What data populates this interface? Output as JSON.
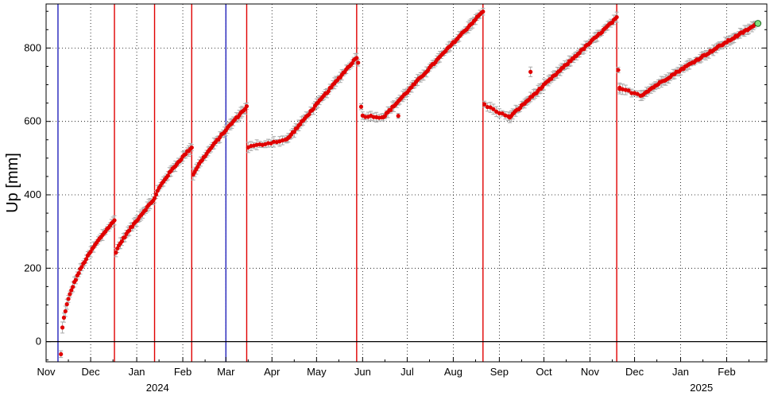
{
  "chart_data": {
    "type": "scatter",
    "title": "",
    "xlabel": "",
    "ylabel": "Up [mm]",
    "x_axis": {
      "kind": "date",
      "min": "2023-11-01",
      "max": "2025-02-28",
      "month_ticks": [
        {
          "date": "2023-11-01",
          "label": "Nov"
        },
        {
          "date": "2023-12-01",
          "label": "Dec"
        },
        {
          "date": "2024-01-01",
          "label": "Jan"
        },
        {
          "date": "2024-02-01",
          "label": "Feb"
        },
        {
          "date": "2024-03-01",
          "label": "Mar"
        },
        {
          "date": "2024-04-01",
          "label": "Apr"
        },
        {
          "date": "2024-05-01",
          "label": "May"
        },
        {
          "date": "2024-06-01",
          "label": "Jun"
        },
        {
          "date": "2024-07-01",
          "label": "Jul"
        },
        {
          "date": "2024-08-01",
          "label": "Aug"
        },
        {
          "date": "2024-09-01",
          "label": "Sep"
        },
        {
          "date": "2024-10-01",
          "label": "Oct"
        },
        {
          "date": "2024-11-01",
          "label": "Nov"
        },
        {
          "date": "2024-12-01",
          "label": "Dec"
        },
        {
          "date": "2025-01-01",
          "label": "Jan"
        },
        {
          "date": "2025-02-01",
          "label": "Feb"
        }
      ],
      "year_labels": [
        {
          "date": "2024-01-15",
          "label": "2024"
        },
        {
          "date": "2025-01-15",
          "label": "2025"
        }
      ]
    },
    "y_axis": {
      "min": -55,
      "max": 920,
      "ticks": [
        0,
        200,
        400,
        600,
        800
      ]
    },
    "grid": true,
    "zero_line": true,
    "colors": {
      "points": "#e00000",
      "error_bars": "#aaaaaa",
      "red_lines": "#e00000",
      "blue_lines": "#2222bb",
      "latest_point": "#80e080"
    },
    "vertical_lines": [
      {
        "date": "2023-11-09",
        "color": "blue"
      },
      {
        "date": "2023-12-17",
        "color": "red"
      },
      {
        "date": "2024-01-13",
        "color": "red"
      },
      {
        "date": "2024-02-07",
        "color": "red"
      },
      {
        "date": "2024-03-01",
        "color": "blue"
      },
      {
        "date": "2024-03-15",
        "color": "red"
      },
      {
        "date": "2024-05-28",
        "color": "red"
      },
      {
        "date": "2024-08-21",
        "color": "red"
      },
      {
        "date": "2024-11-19",
        "color": "red"
      }
    ],
    "segments": [
      {
        "start": "2023-11-11",
        "end": "2023-12-17",
        "y0": -35,
        "y1": 330,
        "curve": 0.45,
        "step_days": 1
      },
      {
        "start": "2023-12-18",
        "end": "2024-01-13",
        "y0": 245,
        "y1": 390,
        "curve": 0.85,
        "step_days": 1
      },
      {
        "start": "2024-01-14",
        "end": "2024-02-07",
        "y0": 400,
        "y1": 530,
        "curve": 0.8,
        "step_days": 1
      },
      {
        "start": "2024-02-08",
        "end": "2024-03-15",
        "y0": 455,
        "y1": 640,
        "curve": 0.85,
        "step_days": 1
      },
      {
        "start": "2024-03-16",
        "end": "2024-04-10",
        "y0": 530,
        "y1": 550,
        "curve": 1.0,
        "step_days": 2
      },
      {
        "start": "2024-04-11",
        "end": "2024-05-28",
        "y0": 550,
        "y1": 775,
        "curve": 1.0,
        "step_days": 1
      },
      {
        "start": "2024-06-01",
        "end": "2024-06-14",
        "y0": 615,
        "y1": 612,
        "curve": 1.0,
        "step_days": 2
      },
      {
        "start": "2024-06-15",
        "end": "2024-08-21",
        "y0": 612,
        "y1": 900,
        "curve": 1.0,
        "step_days": 1
      },
      {
        "start": "2024-08-22",
        "end": "2024-09-07",
        "y0": 645,
        "y1": 612,
        "curve": 1.0,
        "step_days": 2
      },
      {
        "start": "2024-09-08",
        "end": "2024-11-19",
        "y0": 612,
        "y1": 882,
        "curve": 1.0,
        "step_days": 1
      },
      {
        "start": "2024-11-21",
        "end": "2024-12-05",
        "y0": 690,
        "y1": 672,
        "curve": 1.0,
        "step_days": 2
      },
      {
        "start": "2024-12-06",
        "end": "2025-02-20",
        "y0": 672,
        "y1": 862,
        "curve": 0.95,
        "step_days": 1
      }
    ],
    "extra_points": [
      {
        "date": "2024-05-29",
        "y": 760
      },
      {
        "date": "2024-05-31",
        "y": 640
      },
      {
        "date": "2024-06-25",
        "y": 615
      },
      {
        "date": "2024-09-22",
        "y": 735
      },
      {
        "date": "2024-11-20",
        "y": 740
      },
      {
        "date": "2024-11-21",
        "y": 688
      }
    ],
    "latest_point": {
      "date": "2025-02-22",
      "y": 867
    }
  }
}
